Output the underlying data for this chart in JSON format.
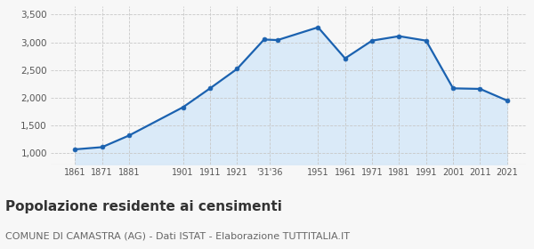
{
  "years": [
    1861,
    1871,
    1881,
    1901,
    1911,
    1921,
    1931,
    1936,
    1951,
    1961,
    1971,
    1981,
    1991,
    2001,
    2011,
    2021
  ],
  "population": [
    1070,
    1110,
    1320,
    1830,
    2170,
    2520,
    3050,
    3040,
    3270,
    2710,
    3030,
    3110,
    3030,
    2170,
    2160,
    1950
  ],
  "xtick_positions": [
    1861,
    1871,
    1881,
    1901,
    1911,
    1921,
    1933,
    1951,
    1961,
    1971,
    1981,
    1991,
    2001,
    2011,
    2021
  ],
  "xtick_labels": [
    "1861",
    "1871",
    "1881",
    "1901",
    "1911",
    "1921",
    "'31'36",
    "1951",
    "1961",
    "1971",
    "1981",
    "1991",
    "2001",
    "2011",
    "2021"
  ],
  "line_color": "#1b62b0",
  "fill_color": "#daeaf8",
  "marker_color": "#1b62b0",
  "bg_color": "#f7f7f7",
  "grid_color": "#c8c8c8",
  "ylim": [
    800,
    3650
  ],
  "yticks": [
    1000,
    1500,
    2000,
    2500,
    3000,
    3500
  ],
  "ytick_labels": [
    "1,000",
    "1,500",
    "2,000",
    "2,500",
    "3,000",
    "3,500"
  ],
  "xlim": [
    1852,
    2028
  ],
  "fill_baseline": 800,
  "title": "Popolazione residente ai censimenti",
  "subtitle": "COMUNE DI CAMASTRA (AG) - Dati ISTAT - Elaborazione TUTTITALIA.IT",
  "title_fontsize": 11,
  "subtitle_fontsize": 8
}
